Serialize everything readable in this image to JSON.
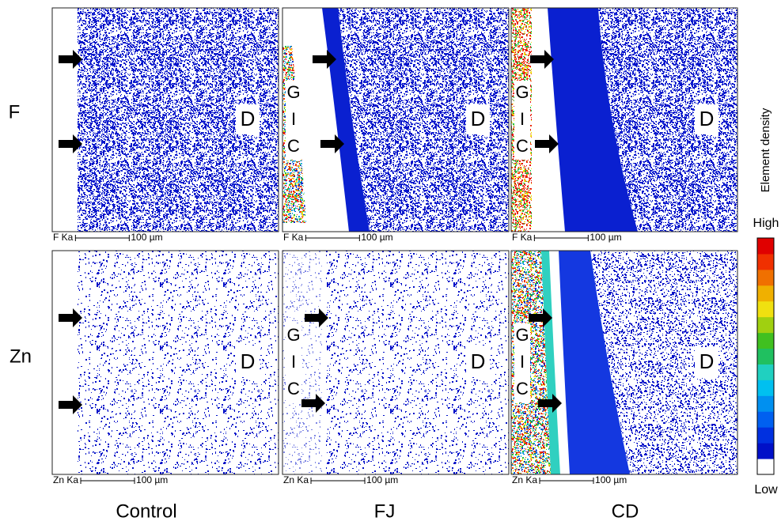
{
  "row_labels": [
    "F",
    "Zn"
  ],
  "column_labels": [
    "Control",
    "FJ",
    "CD"
  ],
  "panels": [
    {
      "region_label": "D",
      "scale_element": "F Ka",
      "scale_length": "100 µm"
    },
    {
      "region_label": "D",
      "gic_label": [
        "G",
        "I",
        "C"
      ],
      "scale_element": "F Ka",
      "scale_length": "100 µm"
    },
    {
      "region_label": "D",
      "gic_label": [
        "G",
        "I",
        "C"
      ],
      "scale_element": "F Ka",
      "scale_length": "100 µm"
    },
    {
      "region_label": "D",
      "scale_element": "Zn Ka",
      "scale_length": "100 µm"
    },
    {
      "region_label": "D",
      "gic_label": [
        "G",
        "I",
        "C"
      ],
      "scale_element": "Zn Ka",
      "scale_length": "100 µm"
    },
    {
      "region_label": "D",
      "gic_label": [
        "G",
        "I",
        "C"
      ],
      "scale_element": "Zn Ka",
      "scale_length": "100 µm"
    }
  ],
  "colorbar": {
    "title": "Element density",
    "high": "High",
    "low": "Low"
  }
}
